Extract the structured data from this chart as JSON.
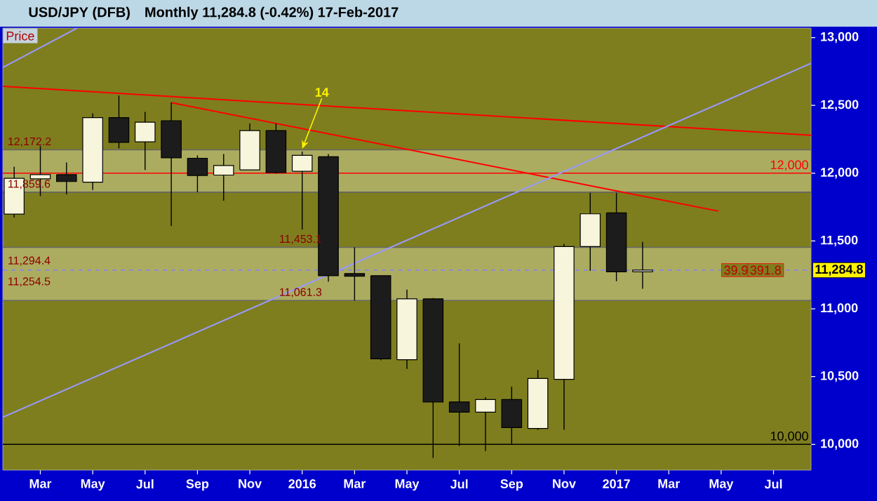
{
  "chart_data": {
    "type": "candlestick",
    "title": "USD/JPY (DFB)",
    "subtitle": "Monthly  11,284.8 (-0.42%)  17-Feb-2017",
    "x": [
      "2015-02",
      "2015-03",
      "2015-04",
      "2015-05",
      "2015-06",
      "2015-07",
      "2015-08",
      "2015-09",
      "2015-10",
      "2015-11",
      "2015-12",
      "2016-01",
      "2016-02",
      "2016-03",
      "2016-04",
      "2016-05",
      "2016-06",
      "2016-07",
      "2016-08",
      "2016-09",
      "2016-10",
      "2016-11",
      "2016-12",
      "2017-01",
      "2017-02"
    ],
    "ohlc": [
      [
        11698,
        12048,
        11673,
        11962
      ],
      [
        11958,
        12200,
        11831,
        11989
      ],
      [
        11989,
        12079,
        11844,
        11938
      ],
      [
        11934,
        12441,
        11876,
        12410
      ],
      [
        12410,
        12573,
        12183,
        12227
      ],
      [
        12231,
        12452,
        12024,
        12376
      ],
      [
        12387,
        12521,
        11611,
        12113
      ],
      [
        12110,
        12131,
        11859,
        11983
      ],
      [
        11986,
        12141,
        11797,
        12056
      ],
      [
        12024,
        12366,
        12024,
        12314
      ],
      [
        12314,
        12366,
        11997,
        12004
      ],
      [
        12014,
        12159,
        11583,
        12131
      ],
      [
        12121,
        12141,
        11200,
        11244
      ],
      [
        11260,
        11453,
        11061,
        11240
      ],
      [
        11244,
        11244,
        10620,
        10631
      ],
      [
        10624,
        11141,
        10556,
        11073
      ],
      [
        11073,
        11079,
        9900,
        10313
      ],
      [
        10313,
        10745,
        9987,
        10238
      ],
      [
        10238,
        10348,
        9951,
        10331
      ],
      [
        10331,
        10424,
        10003,
        10124
      ],
      [
        10117,
        10548,
        10107,
        10486
      ],
      [
        10479,
        11479,
        10107,
        11459
      ],
      [
        11459,
        11855,
        11280,
        11700
      ],
      [
        11707,
        11855,
        11203,
        11272
      ],
      [
        11272,
        11493,
        11148,
        11285
      ]
    ],
    "series": [
      {
        "type": "line",
        "color": "#ff0000",
        "x": [
          "2015-01-18",
          "2017-08-14"
        ],
        "values": [
          12640,
          12280
        ]
      },
      {
        "type": "line",
        "color": "#ff0000",
        "x": [
          "2015-08-01",
          "2017-04-28"
        ],
        "values": [
          12520,
          11720
        ]
      },
      {
        "type": "line",
        "color": "#9999ff",
        "x": [
          "2015-01-18",
          "2017-08-14"
        ],
        "values": [
          10200,
          12810
        ]
      },
      {
        "type": "line",
        "color": "#9999ff",
        "x": [
          "2015-01-18",
          "2015-04-13"
        ],
        "values": [
          12780,
          13070
        ]
      }
    ],
    "xlim": [
      "2015-01-18",
      "2017-08-14"
    ],
    "xticks": [
      {
        "value": "2015-03",
        "label": "Mar"
      },
      {
        "value": "2015-05",
        "label": "May"
      },
      {
        "value": "2015-07",
        "label": "Jul"
      },
      {
        "value": "2015-09",
        "label": "Sep"
      },
      {
        "value": "2015-11",
        "label": "Nov"
      },
      {
        "value": "2016-01",
        "label": "2016"
      },
      {
        "value": "2016-03",
        "label": "Mar"
      },
      {
        "value": "2016-05",
        "label": "May"
      },
      {
        "value": "2016-07",
        "label": "Jul"
      },
      {
        "value": "2016-09",
        "label": "Sep"
      },
      {
        "value": "2016-11",
        "label": "Nov"
      },
      {
        "value": "2017-01",
        "label": "2017"
      },
      {
        "value": "2017-03",
        "label": "Mar"
      },
      {
        "value": "2017-05",
        "label": "May"
      },
      {
        "value": "2017-07",
        "label": "Jul"
      }
    ],
    "ylim": [
      9810,
      13070
    ],
    "yticks": [
      {
        "value": 10000,
        "label": "10,000"
      },
      {
        "value": 10500,
        "label": "10,500"
      },
      {
        "value": 11000,
        "label": "11,000"
      },
      {
        "value": 11500,
        "label": "11,500"
      },
      {
        "value": 12000,
        "label": "12,000"
      },
      {
        "value": 12500,
        "label": "12,500"
      },
      {
        "value": 13000,
        "label": "13,000"
      }
    ],
    "ref_lines": [
      {
        "axis": "y",
        "value": 12000,
        "label": "12,000",
        "color": "#ff0000"
      },
      {
        "axis": "y",
        "value": 10000,
        "label": "10,000",
        "color": "#000000"
      },
      {
        "axis": "y",
        "value": 11284.8,
        "label": "11,284.8",
        "color": "#8080ff",
        "line_style": "dashed"
      }
    ],
    "bands": [
      {
        "axis": "y",
        "from": 11859.6,
        "to": 12172.2,
        "color": "#acac60"
      },
      {
        "axis": "y",
        "from": 11061.3,
        "to": 11453.1,
        "color": "#acac60"
      }
    ],
    "annotations": [
      "Price",
      {
        "text": "14",
        "x": "2016-01",
        "y": 12159
      },
      {
        "text": "12,172.2",
        "x": "2015-01-20",
        "y": 12172.2
      },
      {
        "text": "11,859.6",
        "x": "2015-01-20",
        "y": 11859.6
      },
      {
        "text": "11,294.4",
        "x": "2015-01-20",
        "y": 11294.4
      },
      {
        "text": "11,254.5",
        "x": "2015-01-20",
        "y": 11254.5
      },
      {
        "text": "11,453.1",
        "x": "2015-12",
        "y": 11453.1
      },
      {
        "text": "11,061.3",
        "x": "2015-12",
        "y": 11061.3
      },
      {
        "text": "39.9",
        "x": "2017-05-18",
        "y": 11284.8
      },
      {
        "text": "391.8",
        "x": "2017-06-22",
        "y": 11284.8
      }
    ]
  }
}
